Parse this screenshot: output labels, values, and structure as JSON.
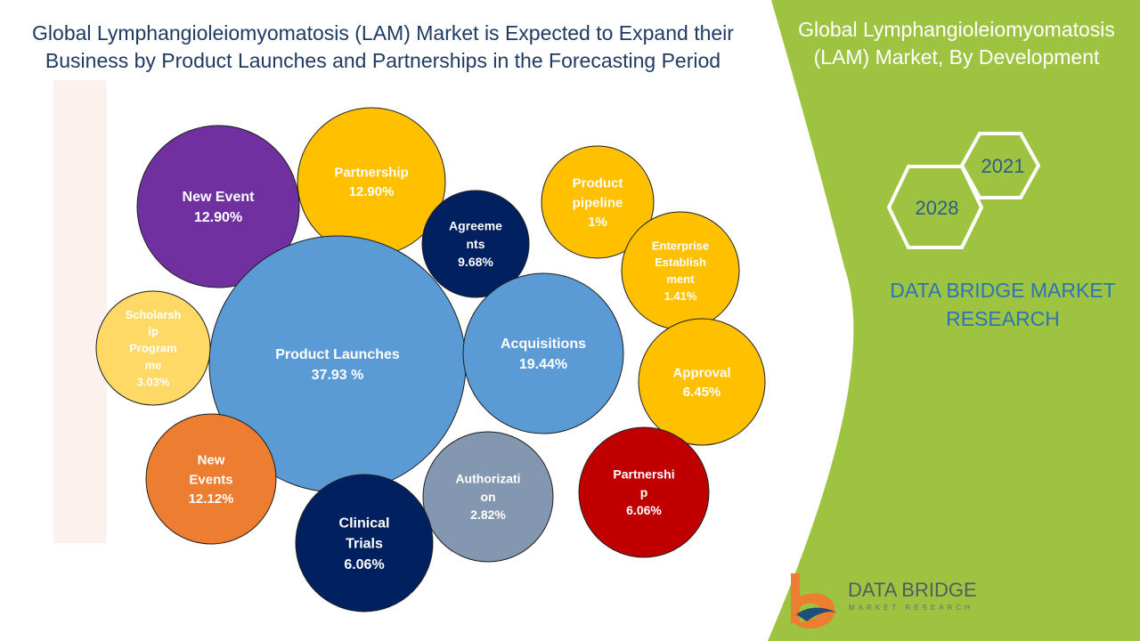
{
  "title": "Global Lymphangioleiomyomatosis (LAM) Market is Expected to Expand their Business by Product Launches and Partnerships  in the Forecasting Period",
  "side_panel": {
    "title": "Global Lymphangioleiomyomatosis (LAM) Market, By Development",
    "year_start": "2021",
    "year_end": "2028",
    "brand_line1": "DATA BRIDGE MARKET",
    "brand_line2": "RESEARCH"
  },
  "logo": {
    "name": "DATA BRIDGE",
    "sub": "MARKET RESEARCH"
  },
  "colors": {
    "green_panel": "#9dc340",
    "purple": "#7030a0",
    "gold": "#ffc000",
    "navy": "#002060",
    "blue": "#5b9bd5",
    "light_gold": "#ffd966",
    "orange": "#ed7d31",
    "gray_blue": "#8497b0",
    "dark_red": "#c00000"
  },
  "chart_data": {
    "type": "bubble",
    "title": "",
    "unit": "%",
    "bubbles": [
      {
        "label_lines": [
          "New Event"
        ],
        "value_label": "12.90%",
        "value": 12.9,
        "color": "#7030a0"
      },
      {
        "label_lines": [
          "Partnership"
        ],
        "value_label": "12.90%",
        "value": 12.9,
        "color": "#ffc000"
      },
      {
        "label_lines": [
          "Agreeme",
          "nts"
        ],
        "value_label": "9.68%",
        "value": 9.68,
        "color": "#002060"
      },
      {
        "label_lines": [
          "Product",
          "pipeline"
        ],
        "value_label": "1%",
        "value": 1,
        "color": "#ffc000"
      },
      {
        "label_lines": [
          "Enterprise",
          "Establish",
          "ment"
        ],
        "value_label": "1.41%",
        "value": 1.41,
        "color": "#ffc000"
      },
      {
        "label_lines": [
          "Scholarsh",
          "ip",
          "Program",
          "me"
        ],
        "value_label": "3.03%",
        "value": 3.03,
        "color": "#ffd966"
      },
      {
        "label_lines": [
          "Product Launches"
        ],
        "value_label": "37.93 %",
        "value": 37.93,
        "color": "#5b9bd5"
      },
      {
        "label_lines": [
          "Acquisitions"
        ],
        "value_label": "19.44%",
        "value": 19.44,
        "color": "#5b9bd5"
      },
      {
        "label_lines": [
          "Approval"
        ],
        "value_label": "6.45%",
        "value": 6.45,
        "color": "#ffc000"
      },
      {
        "label_lines": [
          "New",
          "Events"
        ],
        "value_label": "12.12%",
        "value": 12.12,
        "color": "#ed7d31"
      },
      {
        "label_lines": [
          "Authorizati",
          "on"
        ],
        "value_label": "2.82%",
        "value": 2.82,
        "color": "#8497b0"
      },
      {
        "label_lines": [
          "Partnershi",
          "p"
        ],
        "value_label": "6.06%",
        "value": 6.06,
        "color": "#c00000"
      },
      {
        "label_lines": [
          "Clinical",
          "Trials"
        ],
        "value_label": "6.06%",
        "value": 6.06,
        "color": "#002060"
      }
    ]
  }
}
